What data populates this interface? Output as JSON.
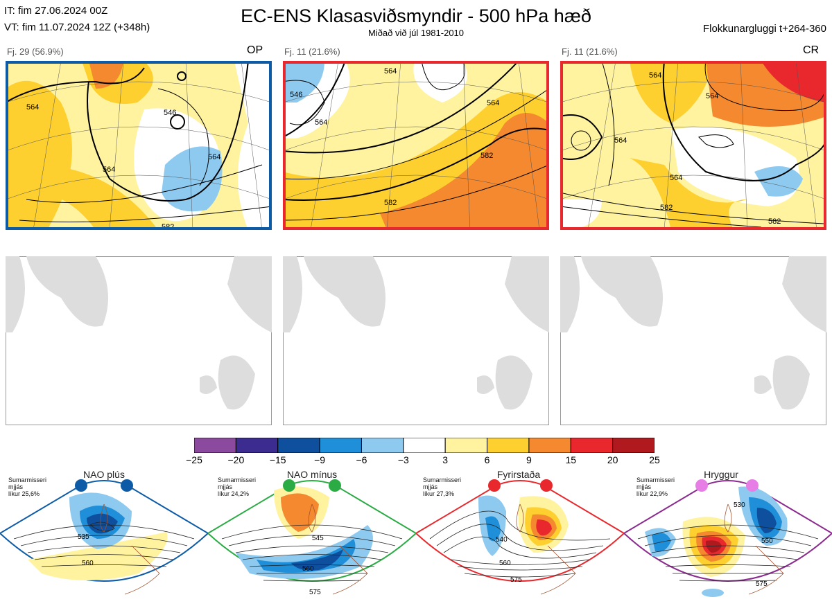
{
  "header": {
    "it_line": "IT: fim 27.06.2024 00Z",
    "vt_line": "VT: fim 11.07.2024 12Z  (+348h)",
    "title": "EC-ENS Klasasviðsmyndir - 500 hPa hæð",
    "subtitle": "Miðað við júl 1981-2010",
    "window": "Flokkunargluggi t+264-360"
  },
  "panels": [
    {
      "label": "Fj. 29 (56.9%)",
      "tag": "OP",
      "frame_color": "#0d5ba6",
      "contours": [
        "564",
        "546",
        "564",
        "564",
        "582"
      ]
    },
    {
      "label": "Fj. 11 (21.6%)",
      "tag": "",
      "frame_color": "#e8282c",
      "contours": [
        "546",
        "564",
        "564",
        "564",
        "582",
        "582"
      ]
    },
    {
      "label": "Fj. 11 (21.6%)",
      "tag": "CR",
      "frame_color": "#e8282c",
      "contours": [
        "564",
        "564",
        "564",
        "564",
        "582",
        "582"
      ]
    }
  ],
  "chart_data": {
    "type": "heatmap",
    "colorbar": {
      "ticks": [
        "−25",
        "−20",
        "−15",
        "−9",
        "−6",
        "−3",
        "3",
        "6",
        "9",
        "15",
        "20",
        "25"
      ],
      "colors": [
        "#8c4a9e",
        "#3d2c8f",
        "#0e4f9e",
        "#1e8fd8",
        "#8ecaf0",
        "#ffffff",
        "#fff3a0",
        "#fdd02f",
        "#f5892f",
        "#e8282c",
        "#b01a1f"
      ]
    }
  },
  "regimes": [
    {
      "name": "NAO plús",
      "note": [
        "Sumarmisseri",
        "mjjás",
        "líkur 25,6%"
      ],
      "dot_color": "#0d5ba6",
      "border_color": "#0d5ba6",
      "contours": [
        "535",
        "560"
      ]
    },
    {
      "name": "NAO mínus",
      "note": [
        "Sumarmisseri",
        "mjjás",
        "líkur 24,2%"
      ],
      "dot_color": "#2aab44",
      "border_color": "#2aab44",
      "contours": [
        "545",
        "560",
        "575"
      ]
    },
    {
      "name": "Fyrirstaða",
      "note": [
        "Sumarmisseri",
        "mjjás",
        "líkur 27,3%"
      ],
      "dot_color": "#e8282c",
      "border_color": "#e8282c",
      "contours": [
        "540",
        "560",
        "575"
      ]
    },
    {
      "name": "Hryggur",
      "note": [
        "Sumarmisseri",
        "mjjás",
        "líkur 22,9%"
      ],
      "dot_color": "#e77ee6",
      "border_color": "#8a2a8e",
      "contours": [
        "530",
        "550",
        "575"
      ]
    }
  ]
}
